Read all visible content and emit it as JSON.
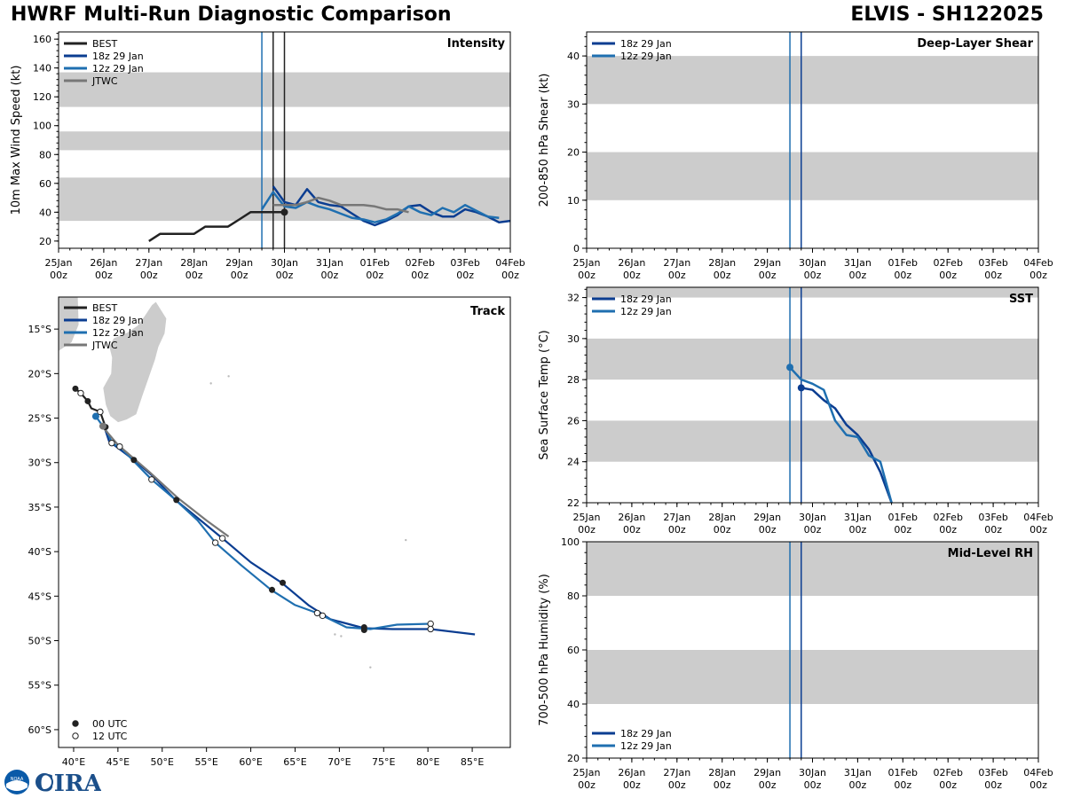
{
  "header": {
    "title": "HWRF Multi-Run Diagnostic Comparison",
    "storm": "ELVIS - SH122025"
  },
  "logo": {
    "noaa_text": "NOAA",
    "cira_text": "CIRA"
  },
  "time_axis": {
    "labels": [
      [
        "25Jan",
        "00z"
      ],
      [
        "26Jan",
        "00z"
      ],
      [
        "27Jan",
        "00z"
      ],
      [
        "28Jan",
        "00z"
      ],
      [
        "29Jan",
        "00z"
      ],
      [
        "30Jan",
        "00z"
      ],
      [
        "31Jan",
        "00z"
      ],
      [
        "01Feb",
        "00z"
      ],
      [
        "02Feb",
        "00z"
      ],
      [
        "03Feb",
        "00z"
      ],
      [
        "04Feb",
        "00z"
      ]
    ],
    "range_days": [
      0,
      10
    ]
  },
  "colors": {
    "best": "#222222",
    "run18": "#0b3d91",
    "run12": "#1f6fb0",
    "jtwc": "#777777",
    "band": "#cccccc",
    "land": "#cccccc"
  },
  "chart_data": [
    {
      "id": "intensity",
      "type": "line",
      "title": "Intensity",
      "ylabel": "10m Max Wind Speed (kt)",
      "ylim": [
        15,
        165
      ],
      "yticks": [
        20,
        40,
        60,
        80,
        100,
        120,
        140,
        160
      ],
      "bands": [
        [
          34,
          64
        ],
        [
          83,
          96
        ],
        [
          113,
          137
        ]
      ],
      "vlines": [
        {
          "x": 4.5,
          "series": "run12"
        },
        {
          "x": 4.75,
          "series": "best"
        },
        {
          "x": 5.0,
          "series": "best"
        }
      ],
      "legend": [
        "BEST",
        "18z 29 Jan",
        "12z 29 Jan",
        "JTWC"
      ],
      "series": [
        {
          "key": "best",
          "name": "BEST",
          "x": [
            2.0,
            2.25,
            2.5,
            2.75,
            3.0,
            3.25,
            3.5,
            3.75,
            4.0,
            4.25,
            4.5,
            4.75,
            5.0
          ],
          "y": [
            20,
            25,
            25,
            25,
            25,
            30,
            30,
            30,
            35,
            40,
            40,
            40,
            40
          ],
          "end_marker": true
        },
        {
          "key": "run18",
          "name": "18z 29 Jan",
          "x": [
            4.75,
            5.0,
            5.25,
            5.5,
            5.75,
            6.0,
            6.25,
            6.5,
            6.75,
            7.0,
            7.25,
            7.5,
            7.75,
            8.0,
            8.25,
            8.5,
            8.75,
            9.0,
            9.25,
            9.5,
            9.75,
            10.0
          ],
          "y": [
            58,
            47,
            45,
            56,
            47,
            45,
            44,
            39,
            34,
            31,
            34,
            38,
            44,
            45,
            40,
            37,
            37,
            42,
            40,
            37,
            33,
            34
          ]
        },
        {
          "key": "run12",
          "name": "12z 29 Jan",
          "x": [
            4.5,
            4.75,
            5.0,
            5.25,
            5.5,
            5.75,
            6.0,
            6.25,
            6.5,
            6.75,
            7.0,
            7.25,
            7.5,
            7.75,
            8.0,
            8.25,
            8.5,
            8.75,
            9.0,
            9.25,
            9.5,
            9.75
          ],
          "y": [
            42,
            54,
            44,
            43,
            47,
            44,
            42,
            39,
            36,
            35,
            33,
            35,
            39,
            44,
            40,
            38,
            43,
            40,
            45,
            41,
            37,
            36
          ]
        },
        {
          "key": "jtwc",
          "name": "JTWC",
          "x": [
            4.75,
            5.0,
            5.25,
            5.5,
            5.75,
            6.0,
            6.25,
            6.5,
            6.75,
            7.0,
            7.25,
            7.5,
            7.75
          ],
          "y": [
            45,
            45,
            45,
            47,
            50,
            48,
            45,
            45,
            45,
            44,
            42,
            42,
            40
          ]
        }
      ]
    },
    {
      "id": "shear",
      "type": "line",
      "title": "Deep-Layer Shear",
      "ylabel": "200-850 hPa Shear (kt)",
      "ylim": [
        0,
        45
      ],
      "yticks": [
        0,
        10,
        20,
        30,
        40
      ],
      "bands": [
        [
          10,
          20
        ],
        [
          30,
          40
        ]
      ],
      "vlines": [
        {
          "x": 4.5,
          "series": "run12"
        },
        {
          "x": 4.75,
          "series": "run18"
        }
      ],
      "legend": [
        "18z 29 Jan",
        "12z 29 Jan"
      ],
      "series": []
    },
    {
      "id": "track",
      "type": "scatter",
      "title": "Track",
      "xlabel_ticks": [
        "40°E",
        "45°E",
        "50°E",
        "55°E",
        "60°E",
        "65°E",
        "70°E",
        "75°E",
        "80°E",
        "85°E"
      ],
      "xticks": [
        40,
        45,
        50,
        55,
        60,
        65,
        70,
        75,
        80,
        85
      ],
      "ylabel_ticks": [
        "15°S",
        "20°S",
        "25°S",
        "30°S",
        "35°S",
        "40°S",
        "45°S",
        "50°S",
        "55°S",
        "60°S"
      ],
      "yticks": [
        -15,
        -20,
        -25,
        -30,
        -35,
        -40,
        -45,
        -50,
        -55,
        -60
      ],
      "lon_range": [
        38.3,
        89.3
      ],
      "lat_range": [
        -62.0,
        -11.4
      ],
      "legend": [
        "BEST",
        "18z 29 Jan",
        "12z 29 Jan",
        "JTWC"
      ],
      "marker_legend": [
        "00 UTC",
        "12 UTC"
      ],
      "series": [
        {
          "key": "best",
          "name": "BEST",
          "lon": [
            40.2,
            40.8,
            41.6,
            42.0,
            43.0,
            43.6
          ],
          "lat": [
            -21.7,
            -22.2,
            -23.1,
            -23.9,
            -24.3,
            -26.0
          ],
          "filled": [
            1,
            0,
            1,
            0,
            0,
            1
          ]
        },
        {
          "key": "run18",
          "name": "18z 29 Jan",
          "lon": [
            43.4,
            44.0,
            46.8,
            48.8,
            51.5,
            53.5,
            56.8,
            60.0,
            63.5,
            66.5,
            69.0,
            72.8,
            76.0,
            80.3,
            85.3
          ],
          "lat": [
            -25.8,
            -27.6,
            -29.7,
            -31.4,
            -34.2,
            -35.8,
            -38.5,
            -41.2,
            -43.5,
            -46.0,
            -47.6,
            -48.6,
            -48.7,
            -48.7,
            -49.3
          ],
          "filled": [
            1,
            0,
            1,
            0,
            1,
            0,
            0,
            0,
            1,
            0,
            0,
            1,
            0,
            0,
            0
          ]
        },
        {
          "key": "run12",
          "name": "12z 29 Jan",
          "lon": [
            42.5,
            43.8,
            44.4,
            45.2,
            48.8,
            51.3,
            54.0,
            56.0,
            59.0,
            62.3,
            65.0,
            67.5,
            70.8,
            73.5,
            76.5,
            80.3
          ],
          "lat": [
            -24.8,
            -26.6,
            -27.9,
            -28.2,
            -31.9,
            -34.0,
            -36.5,
            -39.0,
            -41.6,
            -44.3,
            -46.0,
            -46.9,
            -48.5,
            -48.7,
            -48.2,
            -48.1
          ],
          "filled": [
            1,
            0,
            0,
            0,
            0,
            0,
            0,
            0,
            0,
            1,
            0,
            0,
            0,
            0,
            0,
            0
          ]
        },
        {
          "key": "jtwc",
          "name": "JTWC",
          "lon": [
            43.2,
            45.0,
            48.5,
            51.8,
            55.0,
            57.5
          ],
          "lat": [
            -25.9,
            -28.0,
            -31.0,
            -34.0,
            -36.5,
            -38.3
          ],
          "filled": [
            1,
            0,
            0,
            0,
            0,
            0
          ]
        }
      ],
      "open_markers_extra": [
        {
          "lon": 40.8,
          "lat": -22.2
        },
        {
          "lon": 43.0,
          "lat": -24.3
        },
        {
          "lon": 44.3,
          "lat": -27.8
        },
        {
          "lon": 45.2,
          "lat": -28.2
        },
        {
          "lon": 48.8,
          "lat": -31.9
        },
        {
          "lon": 56.0,
          "lat": -39.0
        },
        {
          "lon": 56.8,
          "lat": -38.5
        },
        {
          "lon": 67.5,
          "lat": -46.9
        },
        {
          "lon": 68.1,
          "lat": -47.2
        },
        {
          "lon": 80.3,
          "lat": -48.1
        },
        {
          "lon": 80.3,
          "lat": -48.7
        }
      ],
      "filled_markers_extra": [
        {
          "lon": 40.2,
          "lat": -21.7
        },
        {
          "lon": 41.6,
          "lat": -23.1
        },
        {
          "lon": 43.6,
          "lat": -26.0
        },
        {
          "lon": 46.8,
          "lat": -29.7
        },
        {
          "lon": 51.6,
          "lat": -34.2
        },
        {
          "lon": 62.4,
          "lat": -44.3
        },
        {
          "lon": 63.6,
          "lat": -43.5
        },
        {
          "lon": 72.8,
          "lat": -48.5
        },
        {
          "lon": 72.8,
          "lat": -48.8
        }
      ]
    },
    {
      "id": "sst",
      "type": "line",
      "title": "SST",
      "ylabel": "Sea Surface Temp (°C)",
      "ylim": [
        22,
        32.5
      ],
      "yticks": [
        22,
        24,
        26,
        28,
        30,
        32
      ],
      "bands": [
        [
          24,
          26
        ],
        [
          28,
          30
        ],
        [
          32,
          34
        ]
      ],
      "vlines": [
        {
          "x": 4.5,
          "series": "run12"
        },
        {
          "x": 4.75,
          "series": "run18"
        }
      ],
      "legend": [
        "18z 29 Jan",
        "12z 29 Jan"
      ],
      "series": [
        {
          "key": "run18",
          "name": "18z 29 Jan",
          "x": [
            4.75,
            5.0,
            5.25,
            5.5,
            5.75,
            6.0,
            6.25,
            6.5,
            6.75
          ],
          "y": [
            27.6,
            27.5,
            27.0,
            26.6,
            25.8,
            25.3,
            24.6,
            23.5,
            22.0
          ],
          "start_marker": true
        },
        {
          "key": "run12",
          "name": "12z 29 Jan",
          "x": [
            4.5,
            4.75,
            5.0,
            5.25,
            5.5,
            5.75,
            6.0,
            6.25,
            6.5,
            6.75
          ],
          "y": [
            28.6,
            28.0,
            27.8,
            27.5,
            26.0,
            25.3,
            25.2,
            24.3,
            24.0,
            22.0
          ],
          "start_marker": true
        }
      ]
    },
    {
      "id": "rh",
      "type": "line",
      "title": "Mid-Level RH",
      "ylabel": "700-500 hPa Humidity (%)",
      "ylim": [
        20,
        100
      ],
      "yticks": [
        20,
        40,
        60,
        80,
        100
      ],
      "bands": [
        [
          40,
          60
        ],
        [
          80,
          100
        ]
      ],
      "vlines": [
        {
          "x": 4.5,
          "series": "run12"
        },
        {
          "x": 4.75,
          "series": "run18"
        }
      ],
      "legend": [
        "18z 29 Jan",
        "12z 29 Jan"
      ],
      "series": []
    }
  ]
}
